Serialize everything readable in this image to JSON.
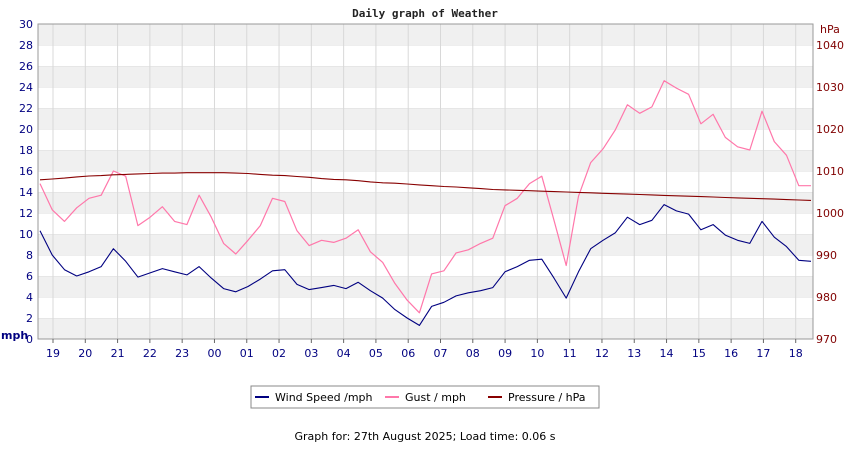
{
  "chart_data": {
    "type": "line",
    "title": "Daily graph of Weather",
    "x_ticks": [
      "19",
      "20",
      "21",
      "22",
      "23",
      "00",
      "01",
      "02",
      "03",
      "04",
      "05",
      "06",
      "07",
      "08",
      "09",
      "10",
      "11",
      "12",
      "13",
      "14",
      "15",
      "16",
      "17",
      "18"
    ],
    "y_left": {
      "label": "mph",
      "min": 0,
      "max": 30,
      "ticks": [
        0,
        2,
        4,
        6,
        8,
        10,
        12,
        14,
        16,
        18,
        20,
        22,
        24,
        26,
        28,
        30
      ]
    },
    "y_right": {
      "label": "hPa",
      "min": 970,
      "max": 1045,
      "ticks": [
        970,
        980,
        990,
        1000,
        1010,
        1020,
        1030,
        1040
      ]
    },
    "series": [
      {
        "name": "Wind Speed /mph",
        "color": "#000080",
        "axis": "left",
        "values": [
          10.3,
          8.0,
          6.6,
          6.0,
          6.4,
          6.9,
          8.6,
          7.4,
          5.9,
          6.3,
          6.7,
          6.4,
          6.1,
          6.9,
          5.8,
          4.8,
          4.5,
          5.0,
          5.7,
          6.5,
          6.6,
          5.2,
          4.7,
          4.9,
          5.1,
          4.8,
          5.4,
          4.6,
          3.9,
          2.8,
          2.0,
          1.3,
          3.1,
          3.5,
          4.1,
          4.4,
          4.6,
          4.9,
          6.4,
          6.9,
          7.5,
          7.6,
          5.8,
          3.9,
          6.4,
          8.6,
          9.4,
          10.1,
          11.6,
          10.9,
          11.3,
          12.8,
          12.2,
          11.9,
          10.4,
          10.9,
          9.9,
          9.4,
          9.1,
          11.2,
          9.7,
          8.8,
          7.5,
          7.4
        ]
      },
      {
        "name": "Gust / mph",
        "color": "#ff77aa",
        "axis": "left",
        "values": [
          14.8,
          12.3,
          11.2,
          12.5,
          13.4,
          13.7,
          16.0,
          15.5,
          10.8,
          11.6,
          12.6,
          11.2,
          10.9,
          13.7,
          11.6,
          9.1,
          8.1,
          9.4,
          10.8,
          13.4,
          13.1,
          10.3,
          8.9,
          9.4,
          9.2,
          9.6,
          10.4,
          8.3,
          7.3,
          5.3,
          3.7,
          2.5,
          6.2,
          6.5,
          8.2,
          8.5,
          9.1,
          9.6,
          12.7,
          13.4,
          14.8,
          15.5,
          11.3,
          7.0,
          13.6,
          16.8,
          18.1,
          19.9,
          22.3,
          21.5,
          22.1,
          24.6,
          23.9,
          23.3,
          20.5,
          21.4,
          19.2,
          18.3,
          18.0,
          21.7,
          18.8,
          17.5,
          14.6,
          14.6
        ]
      },
      {
        "name": "Pressure / hPa",
        "color": "#880000",
        "axis": "right",
        "values": [
          1007.9,
          1008.1,
          1008.3,
          1008.6,
          1008.8,
          1008.9,
          1009.1,
          1009.2,
          1009.3,
          1009.4,
          1009.5,
          1009.5,
          1009.6,
          1009.6,
          1009.6,
          1009.6,
          1009.5,
          1009.4,
          1009.2,
          1009.0,
          1008.9,
          1008.7,
          1008.5,
          1008.2,
          1008.0,
          1007.9,
          1007.7,
          1007.4,
          1007.2,
          1007.1,
          1006.9,
          1006.7,
          1006.5,
          1006.3,
          1006.2,
          1006.0,
          1005.8,
          1005.6,
          1005.5,
          1005.4,
          1005.3,
          1005.2,
          1005.1,
          1005.0,
          1004.9,
          1004.8,
          1004.7,
          1004.6,
          1004.5,
          1004.4,
          1004.3,
          1004.2,
          1004.1,
          1004.0,
          1003.9,
          1003.8,
          1003.7,
          1003.6,
          1003.5,
          1003.4,
          1003.3,
          1003.2,
          1003.1,
          1003.0
        ]
      }
    ],
    "legend": {
      "placement": "bottom-center",
      "items": [
        "Wind Speed /mph",
        "Gust / mph",
        "Pressure / hPa"
      ]
    },
    "grid": true
  },
  "footer": "Graph for: 27th August 2025; Load time: 0.06 s"
}
